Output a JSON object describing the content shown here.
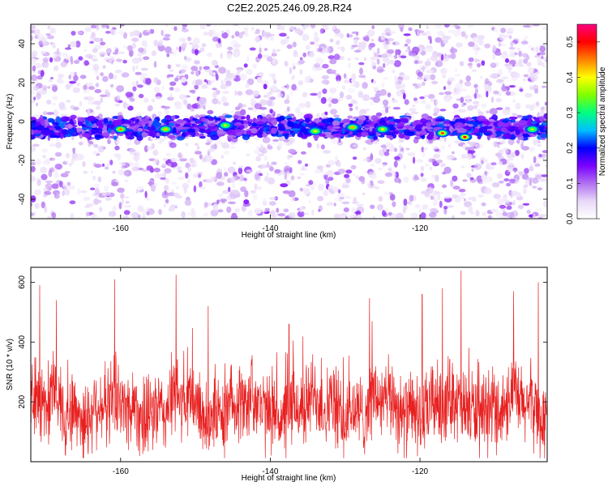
{
  "chart_data": [
    {
      "type": "heatmap",
      "title": "C2E2.2025.246.09.28.R24",
      "xlabel": "Height of straight line (km)",
      "ylabel": "Frequency (Hz)",
      "xlim": [
        -172,
        -103
      ],
      "ylim": [
        -50,
        50
      ],
      "xticks": [
        -160,
        -140,
        -120
      ],
      "yticks": [
        -40,
        -20,
        0,
        20,
        40
      ],
      "colorbar": {
        "label": "Normalized spectral amplitude",
        "range": [
          0.0,
          0.55
        ],
        "ticks": [
          0.0,
          0.1,
          0.2,
          0.3,
          0.4,
          0.5
        ],
        "colors": [
          "#ffffff",
          "#e8d8f8",
          "#b070f0",
          "#7a00ff",
          "#0000ff",
          "#00c0ff",
          "#00ff80",
          "#80ff00",
          "#ffff00",
          "#ff8000",
          "#ff0000",
          "#ff0080"
        ]
      },
      "band": {
        "center_frequency_hz": -3,
        "half_width_hz": 5
      },
      "hot_spots": [
        {
          "x": -160,
          "y": -4,
          "value": 0.45
        },
        {
          "x": -154,
          "y": -4,
          "value": 0.42
        },
        {
          "x": -146,
          "y": -2,
          "value": 0.38
        },
        {
          "x": -134,
          "y": -5,
          "value": 0.4
        },
        {
          "x": -129,
          "y": -3,
          "value": 0.43
        },
        {
          "x": -125,
          "y": -4,
          "value": 0.4
        },
        {
          "x": -117,
          "y": -6,
          "value": 0.48
        },
        {
          "x": -114,
          "y": -8,
          "value": 0.5
        },
        {
          "x": -105,
          "y": -4,
          "value": 0.38
        }
      ]
    },
    {
      "type": "line",
      "xlabel": "Height of straight line (km)",
      "ylabel": "SNR (10 * v/v)",
      "xlim": [
        -172,
        -103
      ],
      "ylim": [
        0,
        650
      ],
      "xticks": [
        -160,
        -140,
        -120
      ],
      "yticks": [
        200,
        400,
        600
      ],
      "color": "#e82020",
      "baseline": 180,
      "noise_amplitude": 110,
      "peaks": [
        {
          "x": -170.8,
          "y": 590
        },
        {
          "x": -168.6,
          "y": 540
        },
        {
          "x": -160.8,
          "y": 610
        },
        {
          "x": -152.6,
          "y": 625
        },
        {
          "x": -148.3,
          "y": 520
        },
        {
          "x": -137.5,
          "y": 460
        },
        {
          "x": -126.4,
          "y": 470
        },
        {
          "x": -119.7,
          "y": 560
        },
        {
          "x": -117.0,
          "y": 580
        },
        {
          "x": -114.5,
          "y": 640
        },
        {
          "x": -107.5,
          "y": 570
        },
        {
          "x": -104.2,
          "y": 600
        }
      ]
    }
  ]
}
